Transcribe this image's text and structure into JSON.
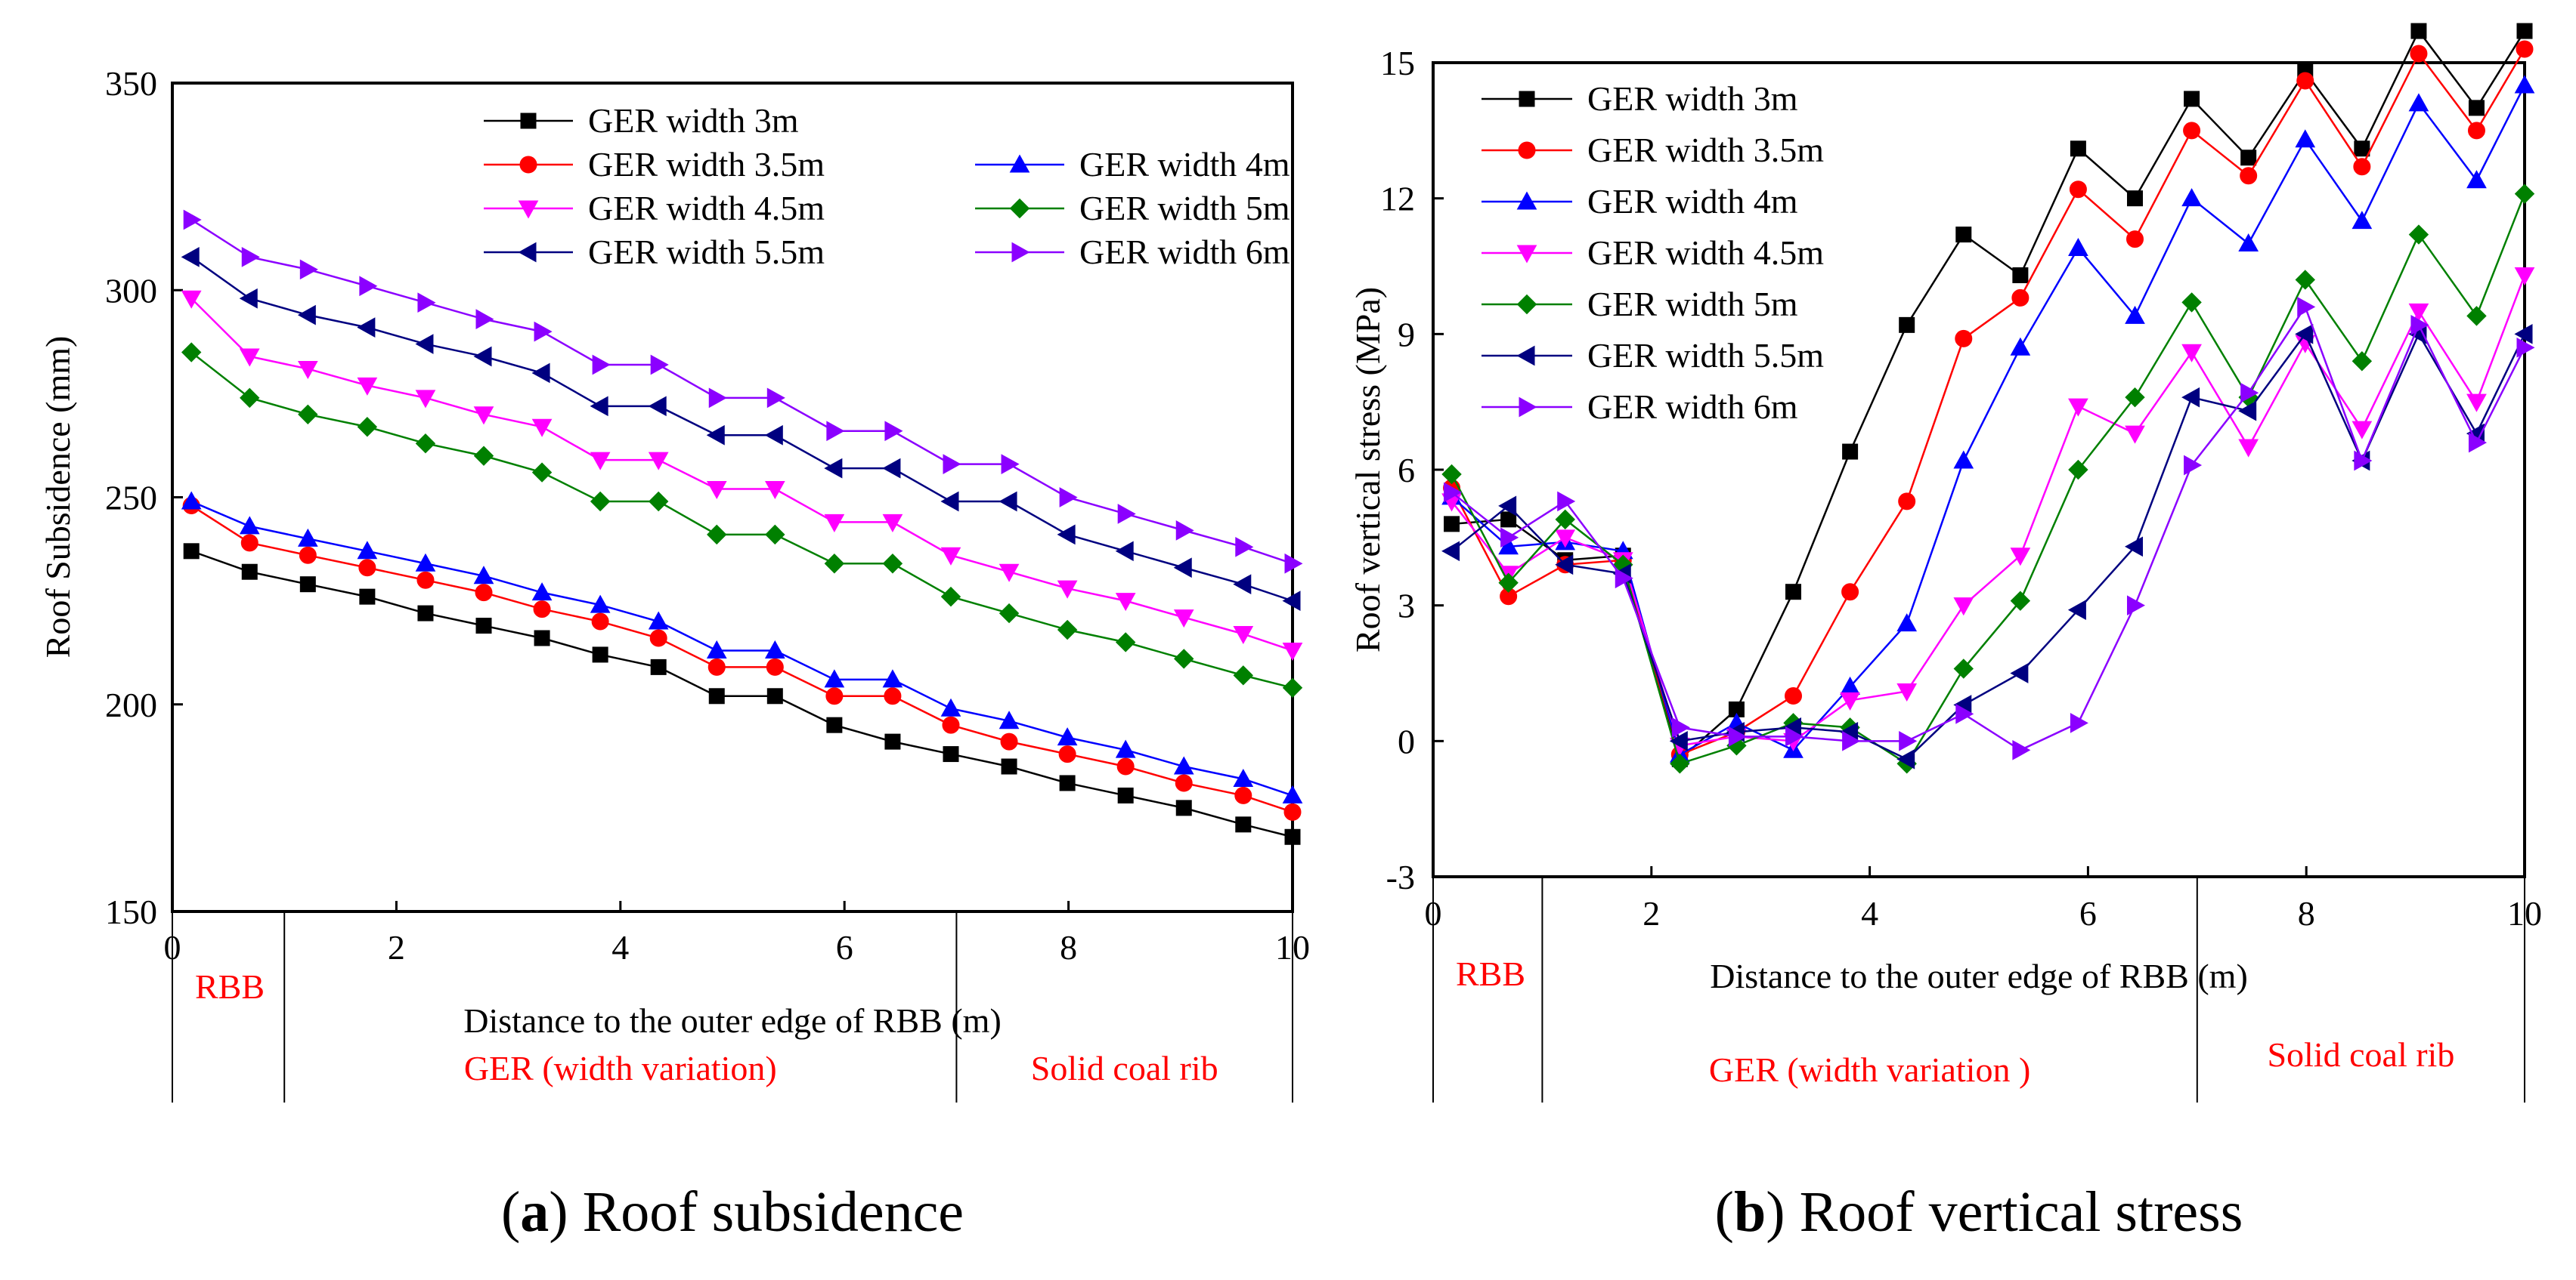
{
  "chart_data": [
    {
      "id": "a",
      "type": "line",
      "caption_letter": "a",
      "caption_text": " Roof subsidence",
      "xlabel": "Distance to the outer edge of RBB (m)",
      "ylabel": "Roof Subsidence (mm)",
      "xlim": [
        0,
        10
      ],
      "ylim": [
        150,
        350
      ],
      "xticks": [
        0,
        2,
        4,
        6,
        8,
        10
      ],
      "yticks": [
        150,
        200,
        250,
        300,
        350
      ],
      "x": [
        0.17,
        0.69,
        1.21,
        1.74,
        2.26,
        2.78,
        3.3,
        3.82,
        4.34,
        4.86,
        5.38,
        5.91,
        6.43,
        6.95,
        7.47,
        7.99,
        8.51,
        9.03,
        9.56,
        10.0
      ],
      "series": [
        {
          "name": "GER width 3m",
          "color": "#000000",
          "marker": "square",
          "values": [
            237,
            232,
            229,
            226,
            222,
            219,
            216,
            212,
            209,
            202,
            202,
            195,
            191,
            188,
            185,
            181,
            178,
            175,
            171,
            168
          ]
        },
        {
          "name": "GER width 3.5m",
          "color": "#ff0000",
          "marker": "circle",
          "values": [
            248,
            239,
            236,
            233,
            230,
            227,
            223,
            220,
            216,
            209,
            209,
            202,
            202,
            195,
            191,
            188,
            185,
            181,
            178,
            174
          ]
        },
        {
          "name": "GER width 4m",
          "color": "#0000ff",
          "marker": "triangle-up",
          "values": [
            249,
            243,
            240,
            237,
            234,
            231,
            227,
            224,
            220,
            213,
            213,
            206,
            206,
            199,
            196,
            192,
            189,
            185,
            182,
            178
          ]
        },
        {
          "name": "GER width 4.5m",
          "color": "#ff00ff",
          "marker": "triangle-down",
          "values": [
            298,
            284,
            281,
            277,
            274,
            270,
            267,
            259,
            259,
            252,
            252,
            244,
            244,
            236,
            232,
            228,
            225,
            221,
            217,
            213
          ]
        },
        {
          "name": "GER width 5m",
          "color": "#008000",
          "marker": "diamond",
          "values": [
            285,
            274,
            270,
            267,
            263,
            260,
            256,
            249,
            249,
            241,
            241,
            234,
            234,
            226,
            222,
            218,
            215,
            211,
            207,
            204
          ]
        },
        {
          "name": "GER width 5.5m",
          "color": "#000080",
          "marker": "triangle-left",
          "values": [
            308,
            298,
            294,
            291,
            287,
            284,
            280,
            272,
            272,
            265,
            265,
            257,
            257,
            249,
            249,
            241,
            237,
            233,
            229,
            225
          ]
        },
        {
          "name": "GER width 6m",
          "color": "#8b00ff",
          "marker": "triangle-right",
          "values": [
            317,
            308,
            305,
            301,
            297,
            293,
            290,
            282,
            282,
            274,
            274,
            266,
            266,
            258,
            258,
            250,
            246,
            242,
            238,
            234
          ]
        }
      ],
      "legend_layout": [
        [
          "GER width 3m"
        ],
        [
          "GER width 3.5m",
          "GER width 4m"
        ],
        [
          "GER width 4.5m",
          "GER width 5m"
        ],
        [
          "GER width 5.5m",
          "GER width 6m"
        ]
      ],
      "regions": [
        {
          "label": "RBB",
          "from": 0,
          "to": 1
        },
        {
          "label": "GER (width variation)",
          "from": 1,
          "to": 7
        },
        {
          "label": "Solid coal rib",
          "from": 7,
          "to": 10
        }
      ]
    },
    {
      "id": "b",
      "type": "line",
      "caption_letter": "b",
      "caption_text": " Roof vertical stress",
      "xlabel": "Distance to the outer edge of RBB (m)",
      "ylabel": "Roof vertical stress (MPa)",
      "xlim": [
        0,
        10
      ],
      "ylim": [
        -3,
        15
      ],
      "xticks": [
        0,
        2,
        4,
        6,
        8,
        10
      ],
      "yticks": [
        -3,
        0,
        3,
        6,
        9,
        12,
        15
      ],
      "x": [
        0.17,
        0.69,
        1.21,
        1.74,
        2.26,
        2.78,
        3.3,
        3.82,
        4.34,
        4.86,
        5.38,
        5.91,
        6.43,
        6.95,
        7.47,
        7.99,
        8.51,
        9.03,
        9.56,
        10.0
      ],
      "series": [
        {
          "name": "GER width 3m",
          "color": "#000000",
          "marker": "square",
          "values": [
            4.8,
            4.9,
            4.0,
            4.1,
            -0.4,
            0.7,
            3.3,
            6.4,
            9.2,
            11.2,
            10.3,
            13.1,
            12.0,
            14.2,
            12.9,
            14.8,
            13.1,
            15.7,
            14.0,
            15.7
          ]
        },
        {
          "name": "GER width 3.5m",
          "color": "#ff0000",
          "marker": "circle",
          "values": [
            5.6,
            3.2,
            3.9,
            4.0,
            -0.3,
            0.2,
            1.0,
            3.3,
            5.3,
            8.9,
            9.8,
            12.2,
            11.1,
            13.5,
            12.5,
            14.6,
            12.7,
            15.2,
            13.5,
            15.3
          ]
        },
        {
          "name": "GER width 4m",
          "color": "#0000ff",
          "marker": "triangle-up",
          "values": [
            5.4,
            4.3,
            4.4,
            4.2,
            -0.3,
            0.4,
            -0.2,
            1.2,
            2.6,
            6.2,
            8.7,
            10.9,
            9.4,
            12.0,
            11.0,
            13.3,
            11.5,
            14.1,
            12.4,
            14.5
          ]
        },
        {
          "name": "GER width 4.5m",
          "color": "#ff00ff",
          "marker": "triangle-down",
          "values": [
            5.3,
            3.7,
            4.5,
            4.0,
            -0.1,
            0.1,
            0.0,
            0.9,
            1.1,
            3.0,
            4.1,
            7.4,
            6.8,
            8.6,
            6.5,
            8.8,
            6.9,
            9.5,
            7.5,
            10.3
          ]
        },
        {
          "name": "GER width 5m",
          "color": "#008000",
          "marker": "diamond",
          "values": [
            5.9,
            3.5,
            4.9,
            3.9,
            -0.5,
            -0.1,
            0.4,
            0.3,
            -0.5,
            1.6,
            3.1,
            6.0,
            7.6,
            9.7,
            7.6,
            10.2,
            8.4,
            11.2,
            9.4,
            12.1
          ]
        },
        {
          "name": "GER width 5.5m",
          "color": "#000080",
          "marker": "triangle-left",
          "values": [
            4.2,
            5.2,
            3.9,
            3.7,
            0.0,
            0.2,
            0.3,
            0.2,
            -0.4,
            0.8,
            1.5,
            2.9,
            4.3,
            7.6,
            7.3,
            9.0,
            6.2,
            9.0,
            6.8,
            9.0
          ]
        },
        {
          "name": "GER width 6m",
          "color": "#8b00ff",
          "marker": "triangle-right",
          "values": [
            5.5,
            4.5,
            5.3,
            3.6,
            0.3,
            0.1,
            0.1,
            0.0,
            0.0,
            0.6,
            -0.2,
            0.4,
            3.0,
            6.1,
            7.7,
            9.6,
            6.2,
            9.2,
            6.6,
            8.7
          ]
        }
      ],
      "legend_layout": [
        [
          "GER width 3m"
        ],
        [
          "GER width 3.5m"
        ],
        [
          "GER width 4m"
        ],
        [
          "GER width 4.5m"
        ],
        [
          "GER width 5m"
        ],
        [
          "GER width 5.5m"
        ],
        [
          "GER width 6m"
        ]
      ],
      "regions": [
        {
          "label": "RBB",
          "from": 0,
          "to": 1
        },
        {
          "label": "GER (width variation )",
          "from": 1,
          "to": 7
        },
        {
          "label": "Solid coal rib",
          "from": 7,
          "to": 10
        }
      ]
    }
  ]
}
